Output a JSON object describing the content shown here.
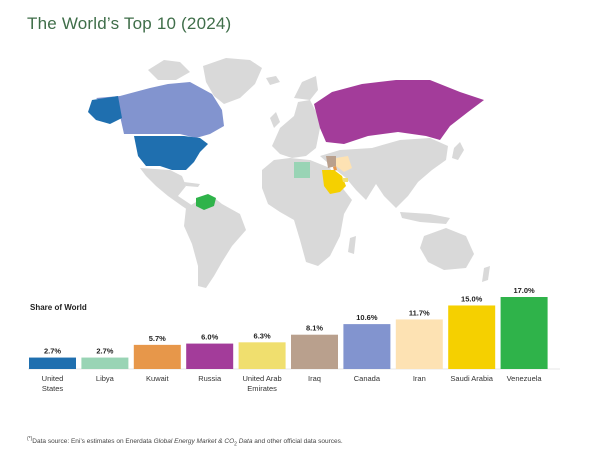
{
  "title": "The World’s Top 10 (2024)",
  "share_label": "Share of World",
  "footnote": {
    "marker": "(*)",
    "prefix": "Data source: Eni’s estimates on Enerdata ",
    "italic_1": "Global Energy Market & CO",
    "subscript": "2",
    "italic_2": " Data",
    "suffix": " and other official data sources."
  },
  "map": {
    "land_color": "#d9d9d9",
    "highlights": [
      {
        "country": "United States",
        "color": "#1f6faf"
      },
      {
        "country": "Canada",
        "color": "#8294cf"
      },
      {
        "country": "Russia",
        "color": "#a33c9a"
      },
      {
        "country": "Venezuela",
        "color": "#2fb34a"
      },
      {
        "country": "Saudi Arabia",
        "color": "#f5d000"
      },
      {
        "country": "Iran",
        "color": "#fde2b3"
      },
      {
        "country": "Iraq",
        "color": "#b9a08d"
      },
      {
        "country": "Libya",
        "color": "#99d4b5"
      },
      {
        "country": "Kuwait",
        "color": "#e7974a"
      },
      {
        "country": "United Arab Emirates",
        "color": "#f0df6e"
      }
    ]
  },
  "chart_data": {
    "type": "bar",
    "ylabel": "Share of World",
    "unit": "%",
    "categories": [
      "United States",
      "Libya",
      "Kuwait",
      "Russia",
      "United Arab Emirates",
      "Iraq",
      "Canada",
      "Iran",
      "Saudi Arabia",
      "Venezuela"
    ],
    "category_lines": [
      [
        "United",
        "States"
      ],
      [
        "Libya"
      ],
      [
        "Kuwait"
      ],
      [
        "Russia"
      ],
      [
        "United Arab",
        "Emirates"
      ],
      [
        "Iraq"
      ],
      [
        "Canada"
      ],
      [
        "Iran"
      ],
      [
        "Saudi Arabia"
      ],
      [
        "Venezuela"
      ]
    ],
    "values": [
      2.7,
      2.7,
      5.7,
      6.0,
      6.3,
      8.1,
      10.6,
      11.7,
      15.0,
      17.0
    ],
    "value_labels": [
      "2.7%",
      "2.7%",
      "5.7%",
      "6.0%",
      "6.3%",
      "8.1%",
      "10.6%",
      "11.7%",
      "15.0%",
      "17.0%"
    ],
    "colors": [
      "#1f6faf",
      "#99d4b5",
      "#e7974a",
      "#a33c9a",
      "#f0df6e",
      "#b9a08d",
      "#8294cf",
      "#fde2b3",
      "#f5d000",
      "#2fb34a"
    ],
    "ylim": [
      0,
      17.0
    ],
    "grid": false,
    "legend": "none"
  }
}
